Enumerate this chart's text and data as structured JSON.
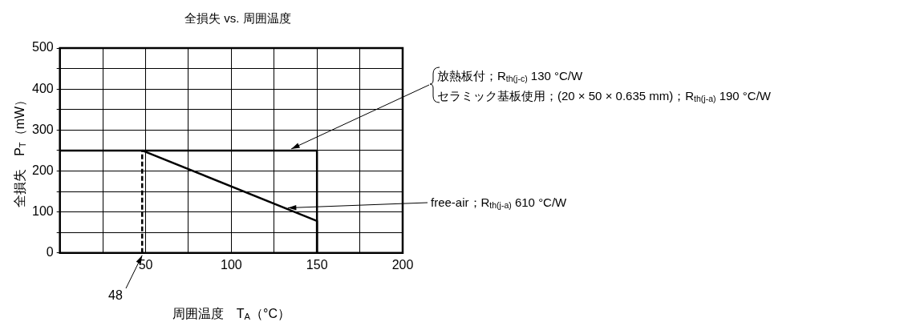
{
  "chart_data": {
    "type": "line",
    "title": "全損失 vs. 周囲温度",
    "xlabel": "周囲温度　T$_{A}$（°C）",
    "ylabel": "全損失　P$_{T}$（mW）",
    "xlim": [
      0,
      200
    ],
    "xticks": [
      {
        "value": 0,
        "label": null
      },
      {
        "value": 25,
        "label": null
      },
      50,
      {
        "value": 75,
        "label": null
      },
      100,
      {
        "value": 125,
        "label": null
      },
      150,
      {
        "value": 175,
        "label": null
      },
      200
    ],
    "ylim": [
      0,
      500
    ],
    "yticks": [
      0,
      {
        "value": 50,
        "label": null
      },
      100,
      {
        "value": 150,
        "label": null
      },
      200,
      {
        "value": 250,
        "label": null
      },
      300,
      {
        "value": 350,
        "label": null
      },
      400,
      {
        "value": 450,
        "label": null
      },
      500
    ],
    "grid": true,
    "legend": false,
    "marker": "none",
    "series": [
      {
        "color": "#000000",
        "x": [
          0,
          150,
          150
        ],
        "values": [
          250,
          250,
          0
        ],
        "line_style": "solid"
      },
      {
        "color": "#000000",
        "x": [
          48,
          150,
          150
        ],
        "values": [
          250,
          78,
          0
        ],
        "line_style": "solid"
      },
      {
        "color": "#000000",
        "x": [
          48,
          48
        ],
        "values": [
          0,
          250
        ],
        "line_style": "dashed"
      }
    ],
    "annotations": [
      {
        "text": "放熱板付；R$_{th(j-c)}$ 130 °C/W",
        "x": 135,
        "y": 250
      },
      {
        "text": "セラミック基板使用；(20 × 50 × 0.635 mm)；R$_{th(j-a)}$ 190 °C/W",
        "x": 135,
        "y": 250
      },
      {
        "text": "free-air；R$_{th(j-a)}$ 610 °C/W",
        "x": 133,
        "y": 110
      },
      {
        "text": "48",
        "x": 48,
        "y": 0
      }
    ]
  }
}
